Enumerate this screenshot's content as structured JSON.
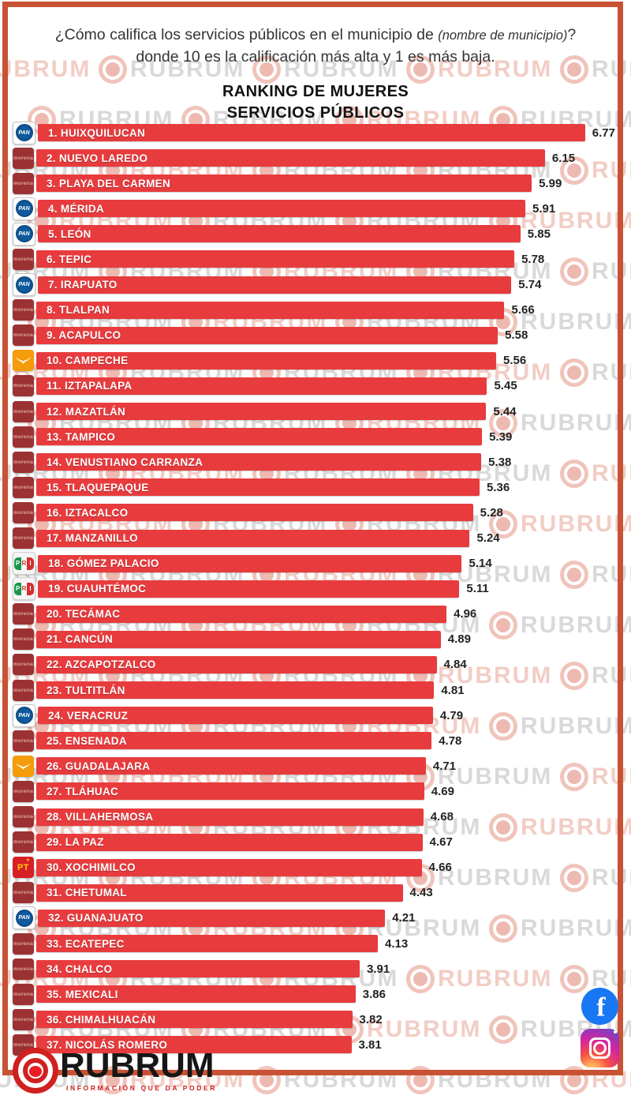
{
  "header": {
    "question_prefix": "¿Cómo califica los servicios públicos en el municipio de ",
    "question_italic": "(nombre de municipio)",
    "question_suffix": "? donde 10 es la calificación más alta y 1 es más baja.",
    "title_line1": "RANKING DE MUJERES",
    "title_line2": "SERVICIOS PÚBLICOS"
  },
  "chart_data": {
    "type": "bar",
    "orientation": "horizontal",
    "title": "RANKING DE MUJERES — SERVICIOS PÚBLICOS",
    "value_scale_max": 7,
    "value_range_implied": [
      1,
      10
    ],
    "bar_color": "#e83b3d",
    "items": [
      {
        "rank": 1,
        "name": "HUIXQUILUCAN",
        "value": 6.77,
        "party": "PAN"
      },
      {
        "rank": 2,
        "name": "NUEVO LAREDO",
        "value": 6.15,
        "party": "MORENA"
      },
      {
        "rank": 3,
        "name": "PLAYA DEL CARMEN",
        "value": 5.99,
        "party": "MORENA"
      },
      {
        "rank": 4,
        "name": "MÉRIDA",
        "value": 5.91,
        "party": "PAN"
      },
      {
        "rank": 5,
        "name": "LEÓN",
        "value": 5.85,
        "party": "PAN"
      },
      {
        "rank": 6,
        "name": "TEPIC",
        "value": 5.78,
        "party": "MORENA"
      },
      {
        "rank": 7,
        "name": "IRAPUATO",
        "value": 5.74,
        "party": "PAN"
      },
      {
        "rank": 8,
        "name": "TLALPAN",
        "value": 5.66,
        "party": "MORENA"
      },
      {
        "rank": 9,
        "name": "ACAPULCO",
        "value": 5.58,
        "party": "MORENA"
      },
      {
        "rank": 10,
        "name": "CAMPECHE",
        "value": 5.56,
        "party": "MC"
      },
      {
        "rank": 11,
        "name": "IZTAPALAPA",
        "value": 5.45,
        "party": "MORENA"
      },
      {
        "rank": 12,
        "name": "MAZATLÁN",
        "value": 5.44,
        "party": "MORENA"
      },
      {
        "rank": 13,
        "name": "TAMPICO",
        "value": 5.39,
        "party": "MORENA"
      },
      {
        "rank": 14,
        "name": "VENUSTIANO CARRANZA",
        "value": 5.38,
        "party": "MORENA"
      },
      {
        "rank": 15,
        "name": "TLAQUEPAQUE",
        "value": 5.36,
        "party": "MORENA"
      },
      {
        "rank": 16,
        "name": "IZTACALCO",
        "value": 5.28,
        "party": "MORENA"
      },
      {
        "rank": 17,
        "name": "MANZANILLO",
        "value": 5.24,
        "party": "MORENA"
      },
      {
        "rank": 18,
        "name": "GÓMEZ PALACIO",
        "value": 5.14,
        "party": "PRI"
      },
      {
        "rank": 19,
        "name": "CUAUHTÉMOC",
        "value": 5.11,
        "party": "PRI"
      },
      {
        "rank": 20,
        "name": "TECÁMAC",
        "value": 4.96,
        "party": "MORENA"
      },
      {
        "rank": 21,
        "name": "CANCÚN",
        "value": 4.89,
        "party": "MORENA"
      },
      {
        "rank": 22,
        "name": "AZCAPOTZALCO",
        "value": 4.84,
        "party": "MORENA"
      },
      {
        "rank": 23,
        "name": "TULTITLÁN",
        "value": 4.81,
        "party": "MORENA"
      },
      {
        "rank": 24,
        "name": "VERACRUZ",
        "value": 4.79,
        "party": "PAN"
      },
      {
        "rank": 25,
        "name": "ENSENADA",
        "value": 4.78,
        "party": "MORENA"
      },
      {
        "rank": 26,
        "name": "GUADALAJARA",
        "value": 4.71,
        "party": "MC"
      },
      {
        "rank": 27,
        "name": "TLÁHUAC",
        "value": 4.69,
        "party": "MORENA"
      },
      {
        "rank": 28,
        "name": "VILLAHERMOSA",
        "value": 4.68,
        "party": "MORENA"
      },
      {
        "rank": 29,
        "name": "LA PAZ",
        "value": 4.67,
        "party": "MORENA"
      },
      {
        "rank": 30,
        "name": "XOCHIMILCO",
        "value": 4.66,
        "party": "PT"
      },
      {
        "rank": 31,
        "name": "CHETUMAL",
        "value": 4.43,
        "party": "MORENA"
      },
      {
        "rank": 32,
        "name": "GUANAJUATO",
        "value": 4.21,
        "party": "PAN"
      },
      {
        "rank": 33,
        "name": "ECATEPEC",
        "value": 4.13,
        "party": "MORENA"
      },
      {
        "rank": 34,
        "name": "CHALCO",
        "value": 3.91,
        "party": "MORENA"
      },
      {
        "rank": 35,
        "name": "MEXICALI",
        "value": 3.86,
        "party": "MORENA"
      },
      {
        "rank": 36,
        "name": "CHIMALHUACÁN",
        "value": 3.82,
        "party": "MORENA"
      },
      {
        "rank": 37,
        "name": "NICOLÁS ROMERO",
        "value": 3.81,
        "party": "MORENA"
      }
    ]
  },
  "parties": {
    "PAN": {
      "label": "PAN",
      "color": "#10599c"
    },
    "MORENA": {
      "label": "morena",
      "color": "#9c3133"
    },
    "MC": {
      "label": "MC",
      "color": "#f49c0b"
    },
    "PRI": {
      "label": "PRI",
      "colors": [
        "#18964b",
        "#ffffff",
        "#d03030"
      ]
    },
    "PT": {
      "label": "PT",
      "color": "#d71f26",
      "accent": "#ffc913",
      "star": "★"
    }
  },
  "watermark": {
    "text": "RUBRUM"
  },
  "footer": {
    "brand": "RUBRUM",
    "tagline": "INFORMACIÓN QUE DA PODER"
  },
  "colors": {
    "frame": "#c75234",
    "bar": "#e83b3d",
    "facebook": "#1877f2"
  },
  "social": {
    "facebook_glyph": "f"
  }
}
